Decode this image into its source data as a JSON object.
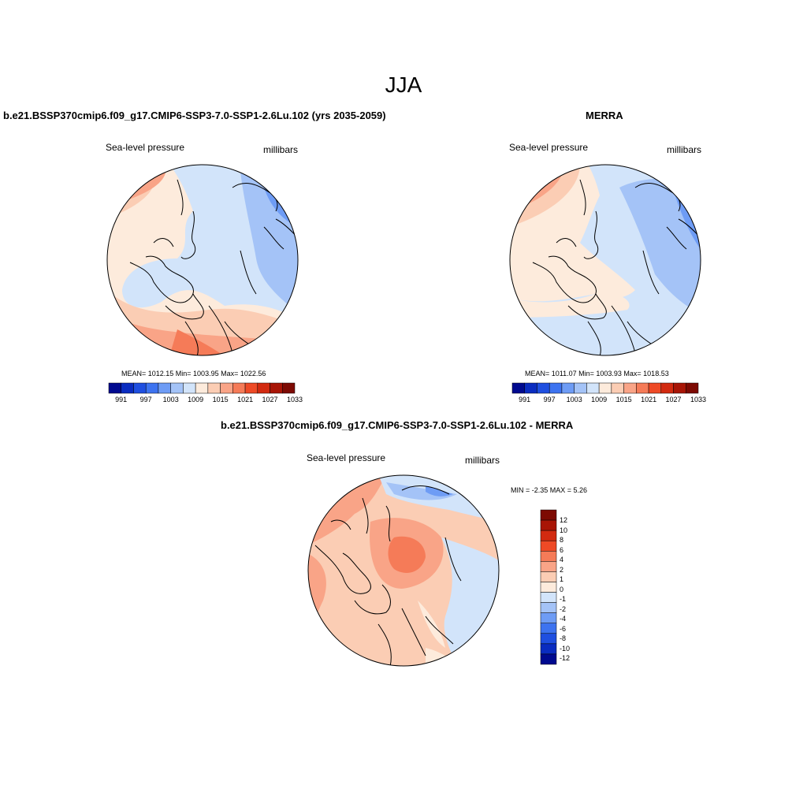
{
  "title": "JJA",
  "panels": {
    "model": {
      "title": "b.e21.BSSP370cmip6.f09_g17.CMIP6-SSP3-7.0-SSP1-2.6Lu.102 (yrs 2035-2059)",
      "variable": "Sea-level pressure",
      "units": "millibars",
      "stats": "MEAN= 1012.15  Min= 1003.95  Max= 1022.56",
      "colorbar_labels": [
        "991",
        "997",
        "1003",
        "1009",
        "1015",
        "1021",
        "1027",
        "1033"
      ]
    },
    "obs": {
      "title": "MERRA",
      "variable": "Sea-level pressure",
      "units": "millibars",
      "stats": "MEAN= 1011.07  Min= 1003.93  Max= 1018.53",
      "colorbar_labels": [
        "991",
        "997",
        "1003",
        "1009",
        "1015",
        "1021",
        "1027",
        "1033"
      ]
    },
    "diff": {
      "title": "b.e21.BSSP370cmip6.f09_g17.CMIP6-SSP3-7.0-SSP1-2.6Lu.102 - MERRA",
      "variable": "Sea-level pressure",
      "units": "millibars",
      "stats": "MIN =  -2.35 MAX =   5.26",
      "colorbar_labels": [
        "12",
        "10",
        "8",
        "6",
        "4",
        "2",
        "1",
        "0",
        "-1",
        "-2",
        "-4",
        "-6",
        "-8",
        "-10",
        "-12"
      ]
    }
  },
  "colors": {
    "abs_scale": [
      "#000a8f",
      "#0a2cc0",
      "#1f4fe0",
      "#3d73f0",
      "#6e9cf5",
      "#a4c3f7",
      "#d2e4fa",
      "#fdebdc",
      "#fbcdb4",
      "#f9a487",
      "#f57b58",
      "#ee4a26",
      "#d22a10",
      "#a81506",
      "#7d0a03"
    ],
    "diff_scale": [
      "#7d0a03",
      "#a81506",
      "#d22a10",
      "#ee4a26",
      "#f57b58",
      "#f9a487",
      "#fbcdb4",
      "#fdebdc",
      "#d2e4fa",
      "#a4c3f7",
      "#6e9cf5",
      "#3d73f0",
      "#1f4fe0",
      "#0a2cc0",
      "#000a8f"
    ]
  }
}
